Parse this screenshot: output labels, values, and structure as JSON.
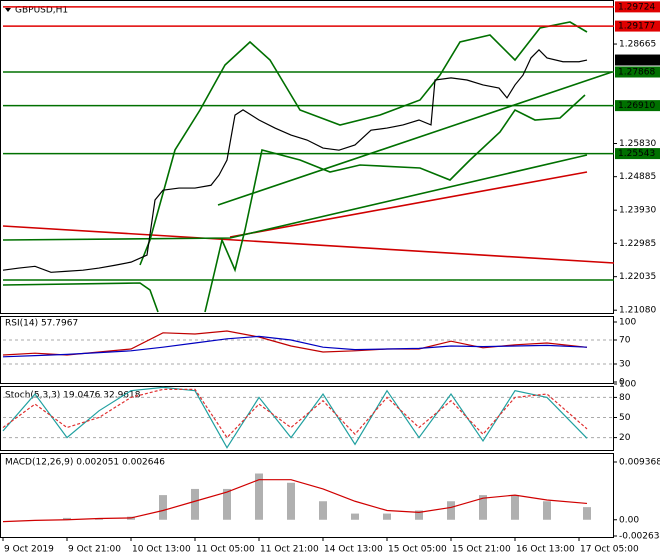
{
  "chart_data": [
    {
      "type": "line",
      "title": "GBPUSD,H1",
      "x": [
        0,
        4,
        8,
        12,
        16,
        20,
        24,
        28,
        32,
        36,
        38,
        40,
        44,
        48,
        52,
        54,
        56,
        58,
        60,
        64,
        68,
        72,
        76,
        80,
        84,
        88,
        92,
        96,
        100,
        104,
        107,
        108,
        112,
        116,
        120,
        124,
        126,
        128,
        130,
        132,
        134,
        136,
        140,
        144,
        146
      ],
      "series": [
        {
          "name": "GBPUSD",
          "color": "#000000",
          "values": [
            1.2222,
            1.2228,
            1.2233,
            1.2216,
            1.2219,
            1.2222,
            1.2228,
            1.2236,
            1.2245,
            1.2265,
            1.2422,
            1.245,
            1.2456,
            1.2456,
            1.2464,
            1.2493,
            1.2536,
            1.2664,
            1.2679,
            1.265,
            1.2627,
            1.2607,
            1.2593,
            1.257,
            1.2564,
            1.2579,
            1.2621,
            1.2627,
            1.2636,
            1.265,
            1.2636,
            1.2764,
            1.277,
            1.2764,
            1.275,
            1.2741,
            1.2713,
            1.275,
            1.2778,
            1.2827,
            1.285,
            1.2827,
            1.2816,
            1.2816,
            1.28209
          ]
        }
      ],
      "xlim": [
        0,
        152.75
      ],
      "ylim": [
        1.21,
        1.2992
      ],
      "yticks": [
        1.28665,
        {
          "value": 1.2583,
          "label": "1.25830"
        },
        1.24885,
        {
          "value": 1.2393,
          "label": "1.23930"
        },
        1.22985,
        1.22035,
        {
          "value": 1.2108,
          "label": "1.21080"
        }
      ],
      "levels": [
        {
          "value": 1.29724,
          "color": "#e00000"
        },
        {
          "value": 1.29177,
          "color": "#e00000"
        },
        {
          "value": 1.27868,
          "color": "#007000"
        },
        {
          "value": {
            "value": 1.2691,
            "label": "1.26910"
          },
          "color": "#007000"
        },
        {
          "value": 1.25543,
          "color": "#007000"
        }
      ]
    },
    {
      "type": "line",
      "title": "RSI(14) 57.7967",
      "x": [
        0,
        8,
        16,
        24,
        32,
        40,
        48,
        56,
        64,
        72,
        80,
        88,
        96,
        104,
        112,
        120,
        128,
        136,
        146
      ],
      "series": [
        {
          "name": "RSI",
          "color": "#c00000",
          "values": [
            45,
            48,
            45,
            50,
            55,
            82,
            80,
            85,
            75,
            60,
            50,
            52,
            55,
            55,
            68,
            57,
            62,
            65,
            57.8
          ]
        },
        {
          "name": "MA",
          "color": "#0000c0",
          "values": [
            42,
            44,
            46,
            49,
            52,
            58,
            65,
            72,
            76,
            70,
            58,
            54,
            55,
            56,
            60,
            59,
            60,
            61,
            58
          ]
        }
      ],
      "xlim": [
        0,
        152.75
      ],
      "ylim": [
        0,
        100
      ],
      "yticks": [
        100,
        70,
        30,
        0
      ],
      "levels": [
        70,
        30
      ]
    },
    {
      "type": "line",
      "title": "Stoch(5,3,3) 19.0476 32.9618",
      "x": [
        0,
        8,
        16,
        24,
        32,
        40,
        48,
        56,
        64,
        72,
        80,
        88,
        96,
        104,
        112,
        120,
        128,
        136,
        146
      ],
      "series": [
        {
          "name": "Main",
          "color": "#20a0a0",
          "values": [
            30,
            85,
            20,
            60,
            90,
            95,
            90,
            5,
            80,
            20,
            85,
            10,
            90,
            20,
            85,
            15,
            90,
            80,
            19
          ]
        },
        {
          "name": "Signal",
          "color": "#e03030",
          "dashed": true,
          "values": [
            35,
            70,
            35,
            50,
            80,
            92,
            92,
            20,
            70,
            35,
            75,
            25,
            80,
            35,
            75,
            25,
            80,
            85,
            33
          ]
        }
      ],
      "xlim": [
        0,
        152.75
      ],
      "ylim": [
        0,
        100
      ],
      "yticks": [
        100,
        80,
        50,
        20
      ],
      "levels": [
        80,
        50,
        20
      ]
    },
    {
      "type": "macd",
      "title": "MACD(12,26,9) 0.002051 0.002646",
      "x": [
        0,
        8,
        16,
        24,
        32,
        40,
        48,
        56,
        64,
        72,
        80,
        88,
        96,
        104,
        112,
        120,
        128,
        136,
        146
      ],
      "series": [
        {
          "name": "MACD",
          "color": "#b0b0b0",
          "values": [
            0,
            0,
            0.0003,
            0.0002,
            0.0005,
            0.004,
            0.005,
            0.005,
            0.0075,
            0.006,
            0.003,
            0.001,
            0.001,
            0.0015,
            0.003,
            0.004,
            0.004,
            0.003,
            0.00205
          ]
        },
        {
          "name": "Signal",
          "color": "#d00000",
          "values": [
            -0.0003,
            -0.0001,
            0,
            0.0002,
            0.0003,
            0.0015,
            0.003,
            0.0045,
            0.0065,
            0.0065,
            0.005,
            0.003,
            0.0015,
            0.0012,
            0.002,
            0.0035,
            0.004,
            0.0032,
            0.002646
          ]
        }
      ],
      "xlim": [
        0,
        152.75
      ],
      "ylim": [
        -0.002634,
        0.009368
      ],
      "yticks": [
        0.009368,
        {
          "value": 0,
          "label": "0.00"
        },
        -0.002634
      ],
      "xticks": [
        {
          "value": 0,
          "label": "9 Oct 2019"
        },
        {
          "value": 16,
          "label": "9 Oct 21:00"
        },
        {
          "value": 32,
          "label": "10 Oct 13:00"
        },
        {
          "value": 48,
          "label": "11 Oct 05:00"
        },
        {
          "value": 64,
          "label": "11 Oct 21:00"
        },
        {
          "value": 80,
          "label": "14 Oct 13:00"
        },
        {
          "value": 96,
          "label": "15 Oct 05:00"
        },
        {
          "value": 112,
          "label": "15 Oct 21:00"
        },
        {
          "value": 128,
          "label": "16 Oct 13:00"
        },
        {
          "value": 144,
          "label": "17 Oct 05:00"
        }
      ]
    }
  ]
}
